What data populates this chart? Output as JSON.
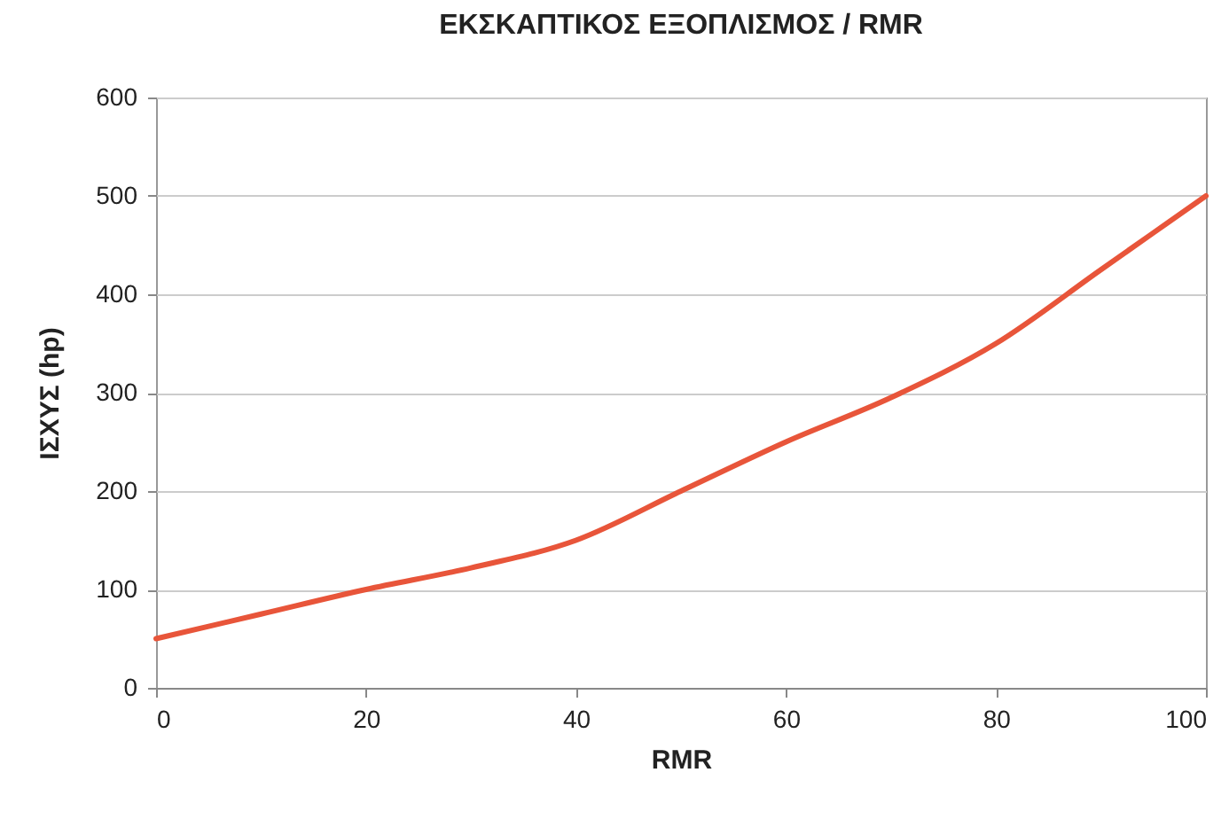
{
  "chart_data": {
    "type": "line",
    "title": "ΕΚΣΚΑΠΤΙΚΟΣ ΕΞΟΠΛΙΣΜΟΣ / RMR",
    "xlabel": "RMR",
    "ylabel": "ΙΣΧΥΣ (hp)",
    "x": [
      0,
      10,
      20,
      30,
      40,
      50,
      60,
      70,
      80,
      90,
      100
    ],
    "series": [
      {
        "color": "#e8553a",
        "values": [
          50,
          75,
          100,
          122,
          150,
          200,
          250,
          295,
          350,
          425,
          500
        ]
      }
    ],
    "xlim": [
      0,
      100
    ],
    "xticks": [
      0,
      20,
      40,
      60,
      80,
      100
    ],
    "ylim": [
      0,
      600
    ],
    "yticks": [
      0,
      100,
      200,
      300,
      400,
      500,
      600
    ],
    "grid": "y",
    "marker": "none",
    "line_style": "solid"
  }
}
